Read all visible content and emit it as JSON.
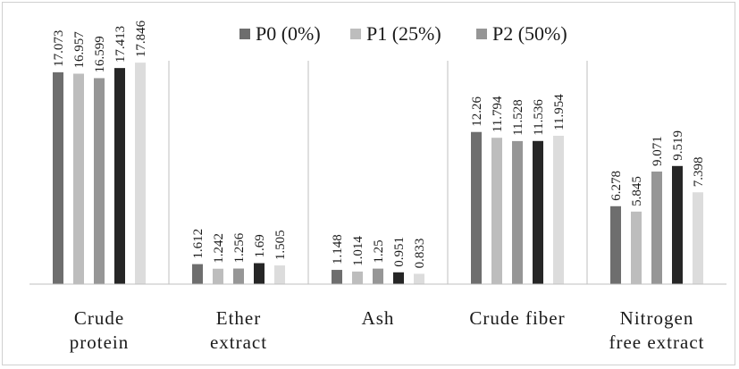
{
  "chart_data": {
    "type": "bar",
    "categories": [
      [
        "Crude",
        "protein"
      ],
      [
        "Ether",
        "extract"
      ],
      [
        "Ash"
      ],
      [
        "Crude fiber"
      ],
      [
        "Nitrogen",
        "free extract"
      ]
    ],
    "series": [
      {
        "name": "P0 (0%)",
        "color": "#6e6e6e",
        "values": [
          17.073,
          1.612,
          1.148,
          12.26,
          6.278
        ],
        "labels": [
          "17.073",
          "1.612",
          "1.148",
          "12.26",
          "6.278"
        ]
      },
      {
        "name": "P1 (25%)",
        "color": "#bdbdbd",
        "values": [
          16.957,
          1.242,
          1.014,
          11.794,
          5.845
        ],
        "labels": [
          "16.957",
          "1.242",
          "1.014",
          "11.794",
          "5.845"
        ]
      },
      {
        "name": "P2 (50%)",
        "color": "#969696",
        "values": [
          16.599,
          1.256,
          1.25,
          11.528,
          9.071
        ],
        "labels": [
          "16.599",
          "1.256",
          "1.25",
          "11.528",
          "9.071"
        ]
      },
      {
        "name": "",
        "color": "#262626",
        "values": [
          17.413,
          1.69,
          0.951,
          11.536,
          9.519
        ],
        "labels": [
          "17.413",
          "1.69",
          "0.951",
          "11.536",
          "9.519"
        ]
      },
      {
        "name": "",
        "color": "#dcdcdc",
        "values": [
          17.846,
          1.505,
          0.833,
          11.954,
          7.398
        ],
        "labels": [
          "17.846",
          "1.505",
          "0.833",
          "11.954",
          "7.398"
        ]
      }
    ],
    "title": "",
    "xlabel": "",
    "ylabel": "",
    "ylim": [
      0,
      18
    ],
    "grid": false,
    "legend_position": "top"
  }
}
